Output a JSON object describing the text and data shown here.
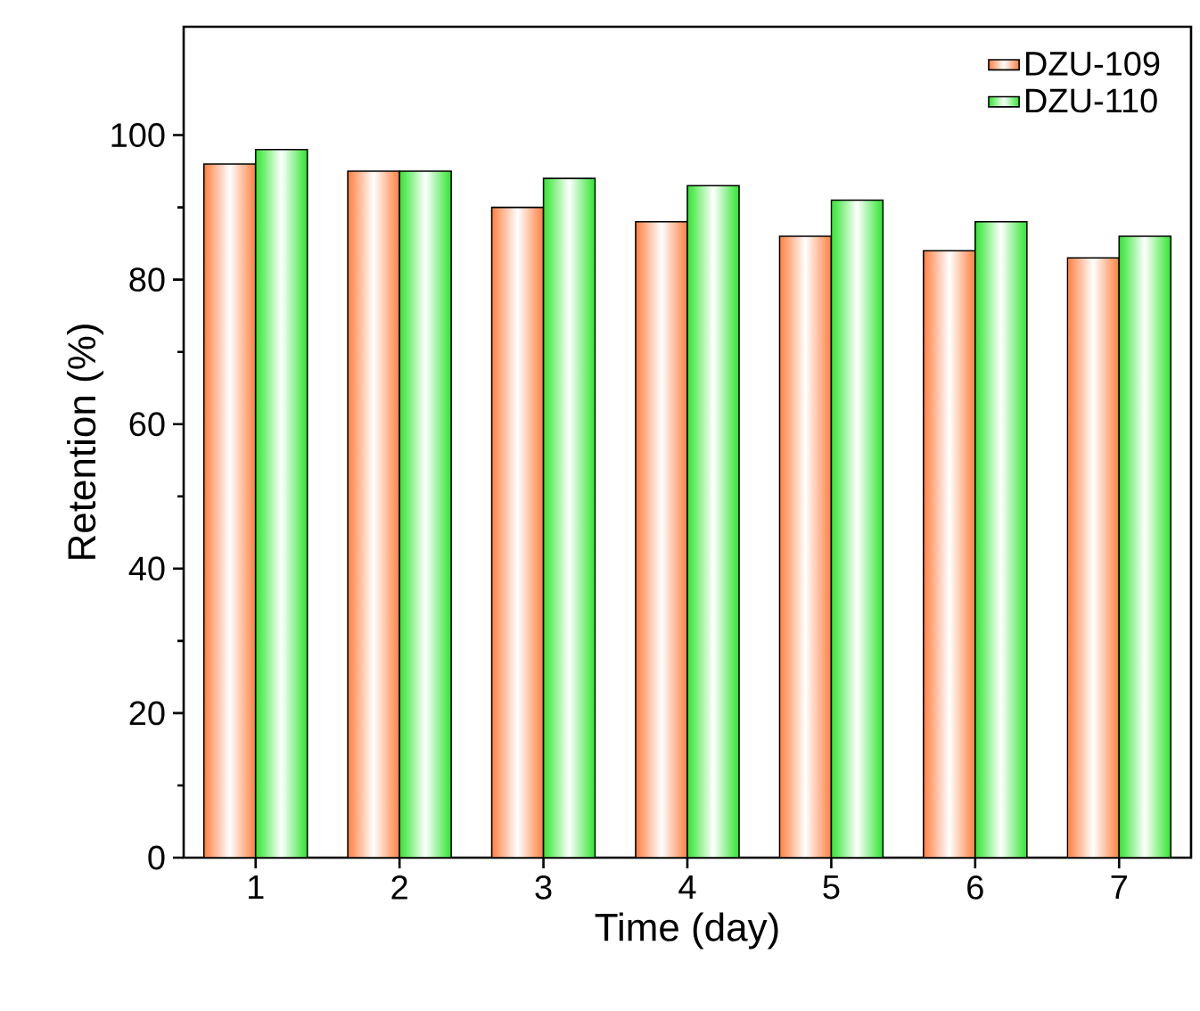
{
  "chart_data": {
    "type": "bar",
    "xlabel": "Time (day)",
    "ylabel": "Retention (%)",
    "categories": [
      "1",
      "2",
      "3",
      "4",
      "5",
      "6",
      "7"
    ],
    "series": [
      {
        "name": "DZU-109",
        "color": "#ff7f3f",
        "values": [
          96,
          95,
          90,
          88,
          86,
          84,
          83
        ]
      },
      {
        "name": "DZU-110",
        "color": "#2ee62e",
        "values": [
          98,
          95,
          94,
          93,
          91,
          88,
          86
        ]
      }
    ],
    "ylim": [
      0,
      115
    ],
    "yticks": [
      0,
      20,
      40,
      60,
      80,
      100
    ],
    "grid": false,
    "legend": "top right"
  }
}
